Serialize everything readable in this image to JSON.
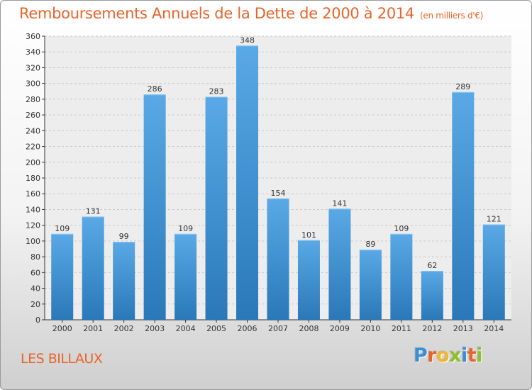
{
  "chart_data": {
    "type": "bar",
    "title": "Remboursements Annuels de la Dette de 2000 à 2014",
    "unit_note": "(en milliers d'€)",
    "categories": [
      "2000",
      "2001",
      "2002",
      "2003",
      "2004",
      "2005",
      "2006",
      "2007",
      "2008",
      "2009",
      "2010",
      "2011",
      "2012",
      "2013",
      "2014"
    ],
    "values": [
      109,
      131,
      99,
      286,
      109,
      283,
      348,
      154,
      101,
      141,
      89,
      109,
      62,
      289,
      121
    ],
    "ylim": [
      0,
      360
    ],
    "yticks": [
      0,
      20,
      40,
      60,
      80,
      100,
      120,
      140,
      160,
      180,
      200,
      220,
      240,
      260,
      280,
      300,
      320,
      340,
      360
    ],
    "grid": true,
    "bar_color_top": "#5aa9e6",
    "bar_color_bottom": "#2a78b8"
  },
  "commune": "LES BILLAUX",
  "logo": {
    "letters": [
      "P",
      "r",
      "o",
      "x",
      "i",
      "t",
      "i"
    ],
    "colors": [
      "#3a8fd6",
      "#e8642a",
      "#f2b631",
      "#8fbf2f",
      "#3a8fd6",
      "#e8642a",
      "#8fbf2f"
    ]
  }
}
